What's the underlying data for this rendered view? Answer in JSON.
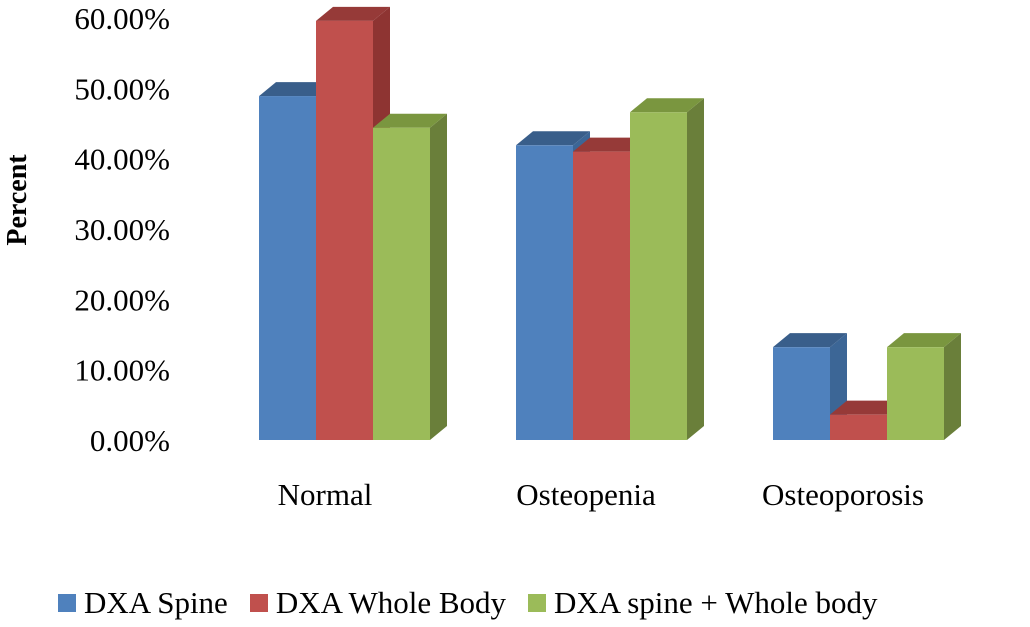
{
  "chart_data": {
    "type": "bar",
    "style": "3d-clustered",
    "title": "",
    "xlabel": "",
    "ylabel": "Percent",
    "ylim": [
      0,
      60
    ],
    "yticks": [
      "0.00%",
      "10.00%",
      "20.00%",
      "30.00%",
      "40.00%",
      "50.00%",
      "60.00%"
    ],
    "categories": [
      "Normal",
      "Osteopenia",
      "Osteoporosis"
    ],
    "series": [
      {
        "name": "DXA Spine",
        "values": [
          48.9,
          41.9,
          13.2
        ],
        "color": "#4f81bd",
        "side_color": "#3c6696",
        "top_color": "#395e8a"
      },
      {
        "name": "DXA Whole Body",
        "values": [
          59.6,
          41.0,
          3.6
        ],
        "color": "#c0504d",
        "side_color": "#8e3432",
        "top_color": "#963a38"
      },
      {
        "name": "DXA spine + Whole body",
        "values": [
          44.4,
          46.6,
          13.2
        ],
        "color": "#9bbb59",
        "side_color": "#6a7f3a",
        "top_color": "#7a963f"
      }
    ],
    "grid": false,
    "legend": "bottom"
  }
}
